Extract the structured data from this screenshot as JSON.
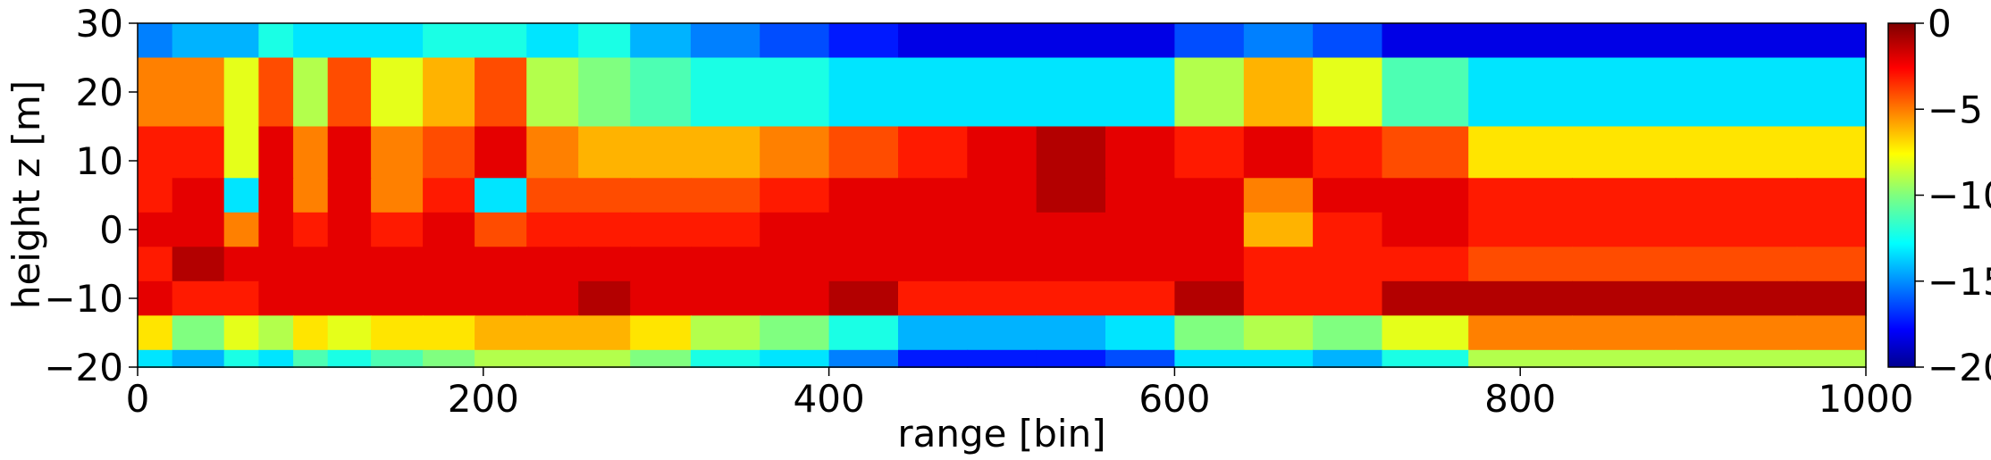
{
  "chart_data": {
    "type": "heatmap",
    "title": "",
    "xlabel": "range [bin]",
    "ylabel": "height z [m]",
    "xlim": [
      0,
      1000
    ],
    "ylim": [
      -20,
      30
    ],
    "x_ticks": [
      0,
      200,
      400,
      600,
      800,
      1000
    ],
    "x_tick_labels": [
      "0",
      "200",
      "400",
      "600",
      "800",
      "1000"
    ],
    "y_ticks": [
      -20,
      -10,
      0,
      10,
      20,
      30
    ],
    "y_tick_labels": [
      "−20",
      "−10",
      "0",
      "10",
      "20",
      "30"
    ],
    "colormap": "jet",
    "colorbar": {
      "range": [
        -20,
        0
      ],
      "ticks": [
        0,
        -5,
        -10,
        -15,
        -20
      ],
      "tick_labels": [
        "0",
        "−5",
        "−10",
        "−15",
        "−20"
      ],
      "placement": "right"
    },
    "x_centers": [
      0,
      40,
      60,
      80,
      100,
      120,
      150,
      180,
      210,
      240,
      270,
      300,
      340,
      380,
      420,
      460,
      500,
      540,
      580,
      620,
      660,
      700,
      740,
      800,
      860,
      920,
      1000
    ],
    "z_centers": [
      30,
      20,
      10,
      5,
      0,
      -5,
      -10,
      -15,
      -20
    ],
    "values": [
      [
        -15,
        -14,
        -14,
        -12,
        -13,
        -13,
        -13,
        -12,
        -12,
        -13,
        -12,
        -14,
        -15,
        -16,
        -17,
        -18,
        -18,
        -18,
        -18,
        -16,
        -15,
        -16,
        -18,
        -18,
        -18,
        -18,
        -18
      ],
      [
        -5,
        -5,
        -8,
        -4,
        -9,
        -4,
        -8,
        -6,
        -4,
        -9,
        -10,
        -11,
        -12,
        -12,
        -13,
        -13,
        -13,
        -13,
        -13,
        -9,
        -6,
        -8,
        -11,
        -13,
        -13,
        -13,
        -13
      ],
      [
        -3,
        -3,
        -8,
        -2,
        -5,
        -2,
        -5,
        -4,
        -2,
        -5,
        -6,
        -6,
        -6,
        -5,
        -4,
        -3,
        -2,
        -1,
        -2,
        -3,
        -2,
        -3,
        -4,
        -7,
        -7,
        -7,
        -7
      ],
      [
        -3,
        -2,
        -13,
        -2,
        -5,
        -2,
        -5,
        -3,
        -13,
        -4,
        -4,
        -4,
        -4,
        -3,
        -2,
        -2,
        -2,
        -1,
        -2,
        -2,
        -5,
        -2,
        -2,
        -3,
        -3,
        -3,
        -3
      ],
      [
        -2,
        -2,
        -5,
        -2,
        -3,
        -2,
        -3,
        -2,
        -4,
        -3,
        -3,
        -3,
        -3,
        -2,
        -2,
        -2,
        -2,
        -2,
        -2,
        -2,
        -6,
        -3,
        -2,
        -3,
        -3,
        -3,
        -3
      ],
      [
        -3,
        -1,
        -2,
        -2,
        -2,
        -2,
        -2,
        -2,
        -2,
        -2,
        -2,
        -2,
        -2,
        -2,
        -2,
        -2,
        -2,
        -2,
        -2,
        -2,
        -3,
        -3,
        -3,
        -4,
        -4,
        -4,
        -4
      ],
      [
        -2,
        -3,
        -3,
        -2,
        -2,
        -2,
        -2,
        -2,
        -2,
        -2,
        -1,
        -2,
        -2,
        -2,
        -1,
        -3,
        -3,
        -3,
        -3,
        -1,
        -3,
        -3,
        -1,
        -1,
        -1,
        -1,
        -1
      ],
      [
        -7,
        -10,
        -8,
        -9,
        -7,
        -8,
        -7,
        -7,
        -6,
        -6,
        -6,
        -7,
        -9,
        -10,
        -12,
        -14,
        -14,
        -14,
        -13,
        -10,
        -9,
        -10,
        -8,
        -5,
        -5,
        -5,
        -5
      ],
      [
        -13,
        -14,
        -12,
        -13,
        -11,
        -12,
        -11,
        -10,
        -9,
        -9,
        -9,
        -10,
        -12,
        -13,
        -15,
        -17,
        -17,
        -17,
        -16,
        -13,
        -13,
        -14,
        -12,
        -9,
        -9,
        -9,
        -9
      ]
    ]
  }
}
